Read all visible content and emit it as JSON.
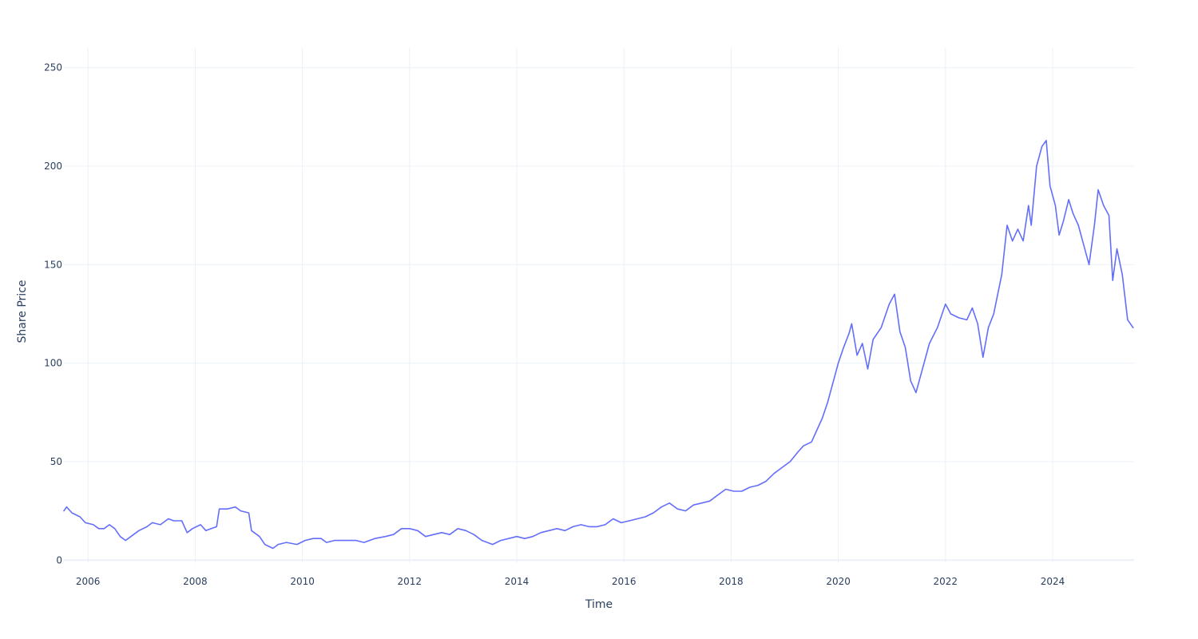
{
  "chart_data": {
    "type": "line",
    "title": "",
    "xlabel": "Time",
    "ylabel": "Share Price",
    "xlim": [
      2005.55,
      2025.52
    ],
    "ylim": [
      -1.5,
      260
    ],
    "grid": true,
    "legend": "none",
    "x_ticks": [
      {
        "value": 2006,
        "label": "2006"
      },
      {
        "value": 2008,
        "label": "2008"
      },
      {
        "value": 2010,
        "label": "2010"
      },
      {
        "value": 2012,
        "label": "2012"
      },
      {
        "value": 2014,
        "label": "2014"
      },
      {
        "value": 2016,
        "label": "2016"
      },
      {
        "value": 2018,
        "label": "2018"
      },
      {
        "value": 2020,
        "label": "2020"
      },
      {
        "value": 2022,
        "label": "2022"
      },
      {
        "value": 2024,
        "label": "2024"
      }
    ],
    "y_ticks": [
      {
        "value": 0,
        "label": "0"
      },
      {
        "value": 50,
        "label": "50"
      },
      {
        "value": 100,
        "label": "100"
      },
      {
        "value": 150,
        "label": "150"
      },
      {
        "value": 200,
        "label": "200"
      },
      {
        "value": 250,
        "label": "250"
      }
    ],
    "colors": {
      "line": "#636efa",
      "grid": "#ebf0f8",
      "zero_line": "#ebf0f8",
      "text": "#2a3f5f"
    },
    "series": [
      {
        "name": "Share Price",
        "points": [
          [
            2005.55,
            25
          ],
          [
            2005.6,
            27
          ],
          [
            2005.7,
            24
          ],
          [
            2005.85,
            22
          ],
          [
            2005.95,
            19
          ],
          [
            2006.1,
            18
          ],
          [
            2006.2,
            16
          ],
          [
            2006.3,
            16
          ],
          [
            2006.4,
            18
          ],
          [
            2006.5,
            16
          ],
          [
            2006.6,
            12
          ],
          [
            2006.7,
            10
          ],
          [
            2006.8,
            12
          ],
          [
            2006.95,
            15
          ],
          [
            2007.1,
            17
          ],
          [
            2007.2,
            19
          ],
          [
            2007.35,
            18
          ],
          [
            2007.5,
            21
          ],
          [
            2007.6,
            20
          ],
          [
            2007.75,
            20
          ],
          [
            2007.85,
            14
          ],
          [
            2007.95,
            16
          ],
          [
            2008.1,
            18
          ],
          [
            2008.2,
            15
          ],
          [
            2008.3,
            16
          ],
          [
            2008.4,
            17
          ],
          [
            2008.45,
            26
          ],
          [
            2008.6,
            26
          ],
          [
            2008.75,
            27
          ],
          [
            2008.85,
            25
          ],
          [
            2009.0,
            24
          ],
          [
            2009.05,
            15
          ],
          [
            2009.2,
            12
          ],
          [
            2009.3,
            8
          ],
          [
            2009.45,
            6
          ],
          [
            2009.55,
            8
          ],
          [
            2009.7,
            9
          ],
          [
            2009.9,
            8
          ],
          [
            2010.05,
            10
          ],
          [
            2010.2,
            11
          ],
          [
            2010.35,
            11
          ],
          [
            2010.45,
            9
          ],
          [
            2010.6,
            10
          ],
          [
            2010.8,
            10
          ],
          [
            2011.0,
            10
          ],
          [
            2011.15,
            9
          ],
          [
            2011.35,
            11
          ],
          [
            2011.55,
            12
          ],
          [
            2011.7,
            13
          ],
          [
            2011.85,
            16
          ],
          [
            2012.0,
            16
          ],
          [
            2012.15,
            15
          ],
          [
            2012.3,
            12
          ],
          [
            2012.45,
            13
          ],
          [
            2012.6,
            14
          ],
          [
            2012.75,
            13
          ],
          [
            2012.9,
            16
          ],
          [
            2013.05,
            15
          ],
          [
            2013.2,
            13
          ],
          [
            2013.35,
            10
          ],
          [
            2013.55,
            8
          ],
          [
            2013.7,
            10
          ],
          [
            2013.85,
            11
          ],
          [
            2014.0,
            12
          ],
          [
            2014.15,
            11
          ],
          [
            2014.3,
            12
          ],
          [
            2014.45,
            14
          ],
          [
            2014.6,
            15
          ],
          [
            2014.75,
            16
          ],
          [
            2014.9,
            15
          ],
          [
            2015.05,
            17
          ],
          [
            2015.2,
            18
          ],
          [
            2015.35,
            17
          ],
          [
            2015.5,
            17
          ],
          [
            2015.65,
            18
          ],
          [
            2015.8,
            21
          ],
          [
            2015.95,
            19
          ],
          [
            2016.1,
            20
          ],
          [
            2016.25,
            21
          ],
          [
            2016.4,
            22
          ],
          [
            2016.55,
            24
          ],
          [
            2016.7,
            27
          ],
          [
            2016.85,
            29
          ],
          [
            2017.0,
            26
          ],
          [
            2017.15,
            25
          ],
          [
            2017.3,
            28
          ],
          [
            2017.45,
            29
          ],
          [
            2017.6,
            30
          ],
          [
            2017.75,
            33
          ],
          [
            2017.9,
            36
          ],
          [
            2018.05,
            35
          ],
          [
            2018.2,
            35
          ],
          [
            2018.35,
            37
          ],
          [
            2018.5,
            38
          ],
          [
            2018.65,
            40
          ],
          [
            2018.8,
            44
          ],
          [
            2018.95,
            47
          ],
          [
            2019.1,
            50
          ],
          [
            2019.25,
            55
          ],
          [
            2019.35,
            58
          ],
          [
            2019.5,
            60
          ],
          [
            2019.6,
            66
          ],
          [
            2019.7,
            72
          ],
          [
            2019.8,
            80
          ],
          [
            2019.9,
            90
          ],
          [
            2020.0,
            100
          ],
          [
            2020.1,
            108
          ],
          [
            2020.2,
            115
          ],
          [
            2020.25,
            120
          ],
          [
            2020.35,
            104
          ],
          [
            2020.45,
            110
          ],
          [
            2020.55,
            97
          ],
          [
            2020.65,
            112
          ],
          [
            2020.8,
            118
          ],
          [
            2020.95,
            130
          ],
          [
            2021.05,
            135
          ],
          [
            2021.15,
            116
          ],
          [
            2021.25,
            108
          ],
          [
            2021.35,
            91
          ],
          [
            2021.45,
            85
          ],
          [
            2021.55,
            95
          ],
          [
            2021.7,
            110
          ],
          [
            2021.85,
            118
          ],
          [
            2022.0,
            130
          ],
          [
            2022.1,
            125
          ],
          [
            2022.25,
            123
          ],
          [
            2022.4,
            122
          ],
          [
            2022.5,
            128
          ],
          [
            2022.6,
            120
          ],
          [
            2022.7,
            103
          ],
          [
            2022.8,
            118
          ],
          [
            2022.9,
            125
          ],
          [
            2023.05,
            145
          ],
          [
            2023.15,
            170
          ],
          [
            2023.25,
            162
          ],
          [
            2023.35,
            168
          ],
          [
            2023.45,
            162
          ],
          [
            2023.55,
            180
          ],
          [
            2023.6,
            170
          ],
          [
            2023.7,
            200
          ],
          [
            2023.8,
            210
          ],
          [
            2023.88,
            213
          ],
          [
            2023.95,
            190
          ],
          [
            2024.05,
            180
          ],
          [
            2024.12,
            165
          ],
          [
            2024.2,
            172
          ],
          [
            2024.3,
            183
          ],
          [
            2024.38,
            176
          ],
          [
            2024.48,
            170
          ],
          [
            2024.58,
            160
          ],
          [
            2024.68,
            150
          ],
          [
            2024.78,
            170
          ],
          [
            2024.85,
            188
          ],
          [
            2024.95,
            180
          ],
          [
            2025.05,
            175
          ],
          [
            2025.12,
            142
          ],
          [
            2025.2,
            158
          ],
          [
            2025.3,
            145
          ],
          [
            2025.4,
            122
          ],
          [
            2025.5,
            118
          ]
        ]
      }
    ]
  }
}
